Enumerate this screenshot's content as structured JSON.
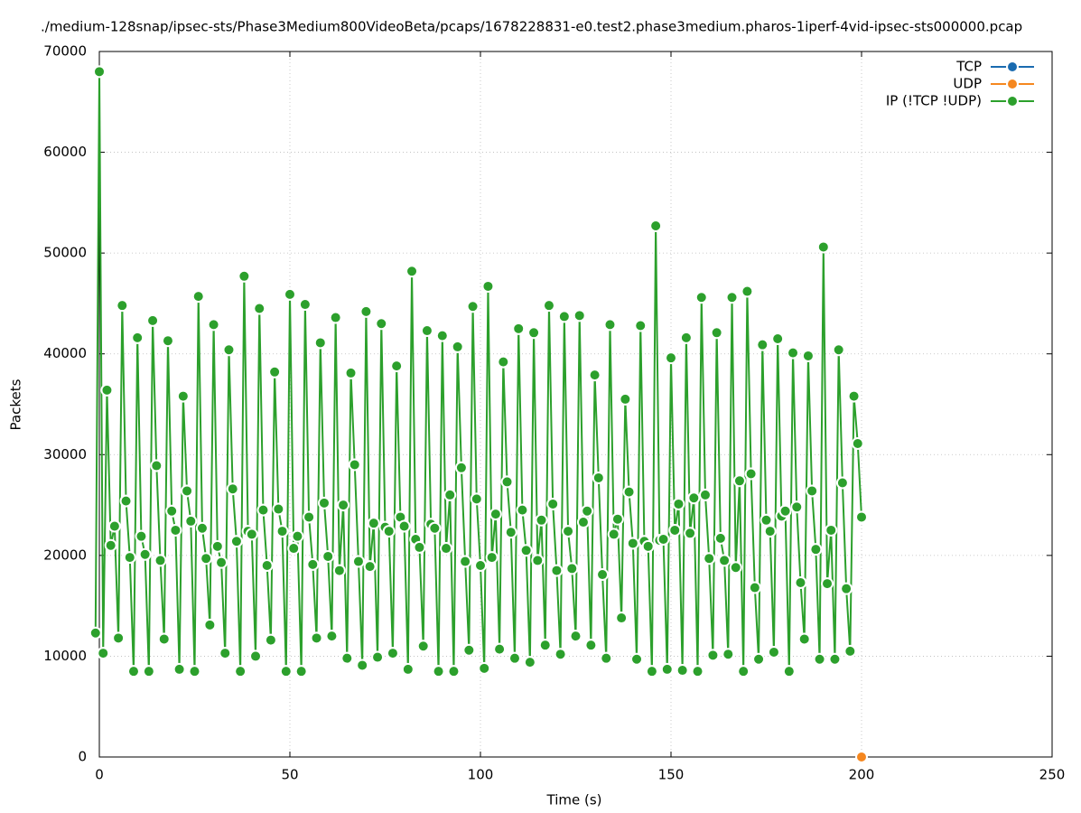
{
  "chart_data": {
    "type": "line",
    "title": "./medium-128snap/ipsec-sts/Phase3Medium800VideoBeta/pcaps/1678228831-e0.test2.phase3medium.pharos-1iperf-4vid-ipsec-sts000000.pcap",
    "x_label": "Time (s)",
    "y_label": "Packets",
    "xlim": [
      0,
      250
    ],
    "xticks": [
      0,
      50,
      100,
      150,
      200,
      250
    ],
    "ylim": [
      0,
      70000
    ],
    "yticks": [
      0,
      10000,
      20000,
      30000,
      40000,
      50000,
      60000,
      70000
    ],
    "grid": true,
    "legend": "top-right",
    "x": [
      -1,
      0,
      1,
      2,
      3,
      4,
      5,
      6,
      7,
      8,
      9,
      10,
      11,
      12,
      13,
      14,
      15,
      16,
      17,
      18,
      19,
      20,
      21,
      22,
      23,
      24,
      25,
      26,
      27,
      28,
      29,
      30,
      31,
      32,
      33,
      34,
      35,
      36,
      37,
      38,
      39,
      40,
      41,
      42,
      43,
      44,
      45,
      46,
      47,
      48,
      49,
      50,
      51,
      52,
      53,
      54,
      55,
      56,
      57,
      58,
      59,
      60,
      61,
      62,
      63,
      64,
      65,
      66,
      67,
      68,
      69,
      70,
      71,
      72,
      73,
      74,
      75,
      76,
      77,
      78,
      79,
      80,
      81,
      82,
      83,
      84,
      85,
      86,
      87,
      88,
      89,
      90,
      91,
      92,
      93,
      94,
      95,
      96,
      97,
      98,
      99,
      100,
      101,
      102,
      103,
      104,
      105,
      106,
      107,
      108,
      109,
      110,
      111,
      112,
      113,
      114,
      115,
      116,
      117,
      118,
      119,
      120,
      121,
      122,
      123,
      124,
      125,
      126,
      127,
      128,
      129,
      130,
      131,
      132,
      133,
      134,
      135,
      136,
      137,
      138,
      139,
      140,
      141,
      142,
      143,
      144,
      145,
      146,
      147,
      148,
      149,
      150,
      151,
      152,
      153,
      154,
      155,
      156,
      157,
      158,
      159,
      160,
      161,
      162,
      163,
      164,
      165,
      166,
      167,
      168,
      169,
      170,
      171,
      172,
      173,
      174,
      175,
      176,
      177,
      178,
      179,
      180,
      181,
      182,
      183,
      184,
      185,
      186,
      187,
      188,
      189,
      190,
      191,
      192,
      193,
      194,
      195,
      196,
      197,
      198,
      199,
      200
    ],
    "series": [
      {
        "name": "TCP",
        "color": "#1a6bb0",
        "x": [],
        "values": []
      },
      {
        "name": "UDP",
        "color": "#f5871f",
        "x": [
          200
        ],
        "values": [
          0
        ]
      },
      {
        "name": "IP (!TCP  !UDP)",
        "color": "#2ca02c",
        "values": [
          12300,
          68000,
          10300,
          36400,
          21000,
          22900,
          11800,
          44800,
          25400,
          19800,
          8500,
          41600,
          21900,
          20100,
          8500,
          43300,
          28900,
          19500,
          11700,
          41300,
          24400,
          22500,
          8700,
          35800,
          26400,
          23400,
          8500,
          45700,
          22700,
          19700,
          13100,
          42900,
          20900,
          19300,
          10300,
          40400,
          26600,
          21400,
          8500,
          47700,
          22400,
          22100,
          10000,
          44500,
          24500,
          19000,
          11600,
          38200,
          24600,
          22400,
          8500,
          45900,
          20700,
          21900,
          8500,
          44900,
          23800,
          19100,
          11800,
          41100,
          25200,
          19900,
          12000,
          43600,
          18500,
          25000,
          9800,
          38100,
          29000,
          19400,
          9100,
          44200,
          18900,
          23200,
          9900,
          43000,
          22800,
          22400,
          10300,
          38800,
          23800,
          22900,
          8700,
          48200,
          21600,
          20800,
          11000,
          42300,
          23100,
          22700,
          8500,
          41800,
          20700,
          26000,
          8500,
          40700,
          28700,
          19400,
          10600,
          44700,
          25600,
          19000,
          8800,
          46700,
          19800,
          24100,
          10700,
          39200,
          27300,
          22300,
          9800,
          42500,
          24500,
          20500,
          9400,
          42100,
          19500,
          23500,
          11100,
          44800,
          25100,
          18500,
          10200,
          43700,
          22400,
          18700,
          12000,
          43800,
          23300,
          24400,
          11100,
          37900,
          27700,
          18100,
          9800,
          42900,
          22100,
          23600,
          13800,
          35500,
          26300,
          21200,
          9700,
          42800,
          21400,
          20900,
          8500,
          52700,
          21500,
          21600,
          8700,
          39600,
          22500,
          25100,
          8600,
          41600,
          22200,
          25700,
          8500,
          45600,
          26000,
          19700,
          10100,
          42100,
          21700,
          19500,
          10200,
          45600,
          18800,
          27400,
          8500,
          46200,
          28100,
          16800,
          9700,
          40900,
          23500,
          22400,
          10400,
          41500,
          23900,
          24400,
          8500,
          40100,
          24800,
          17300,
          11700,
          39800,
          26400,
          20600,
          9700,
          50600,
          17200,
          22500,
          9700,
          40400,
          27200,
          16700,
          10500,
          35800,
          31100,
          23800
        ]
      }
    ]
  }
}
